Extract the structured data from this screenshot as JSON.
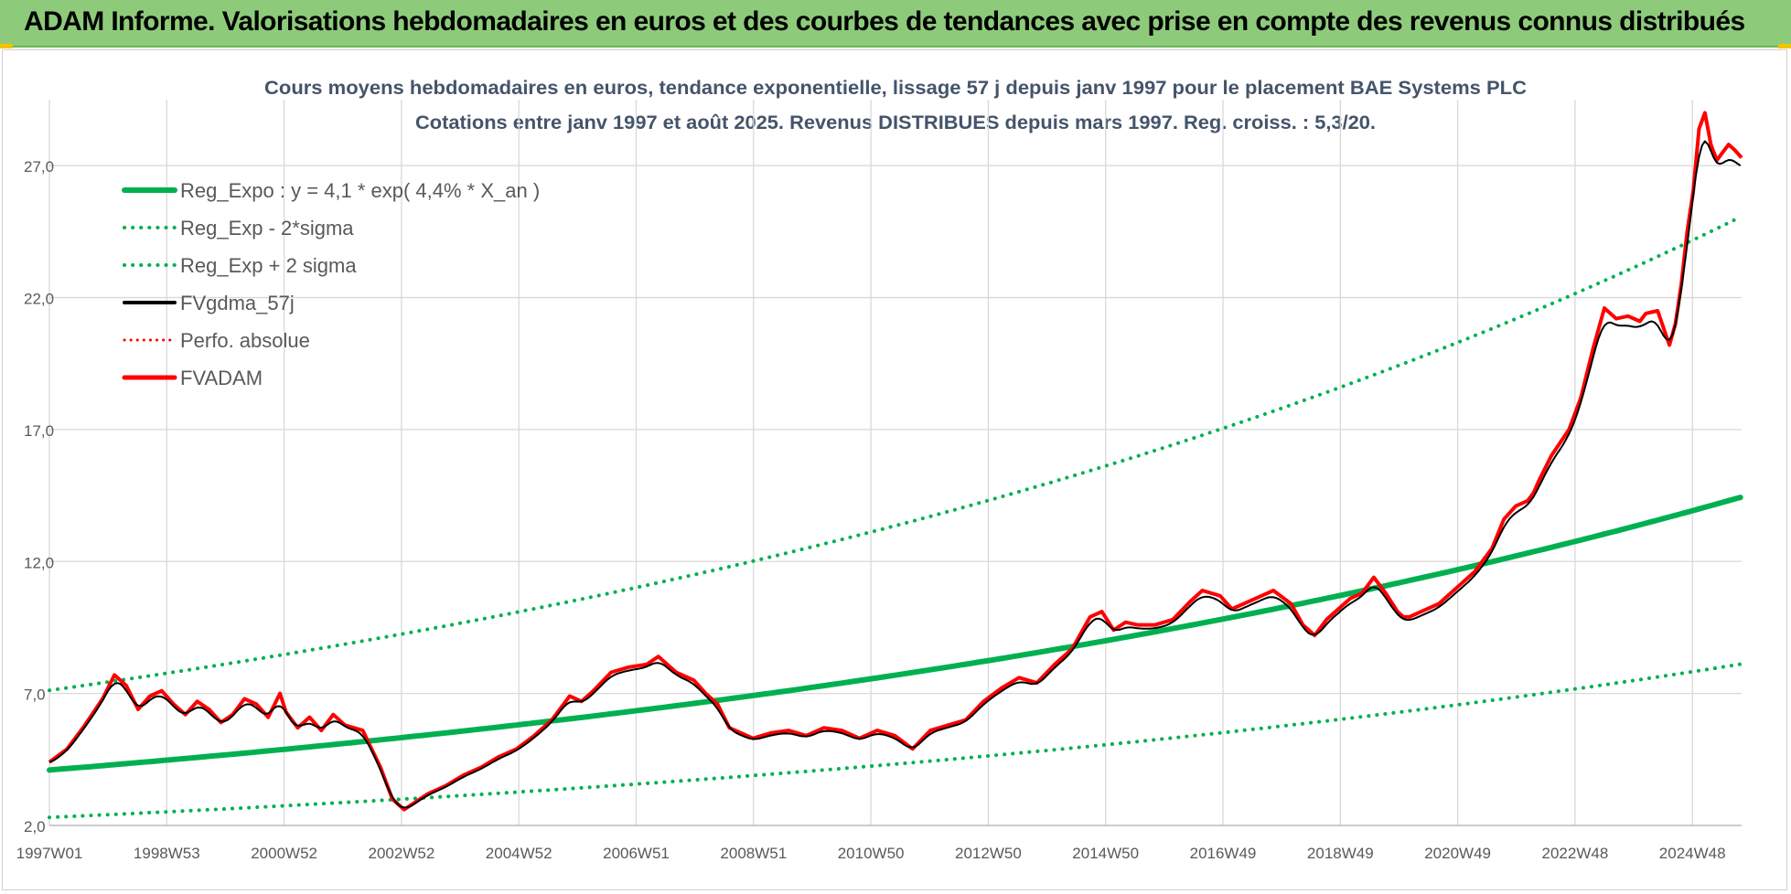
{
  "header": {
    "title": "ADAM Informe. Valorisations hebdomadaires en euros et des courbes de tendances avec prise en compte des revenus connus distribués"
  },
  "chart_data": {
    "type": "line",
    "title": "Cours moyens hebdomadaires en euros, tendance exponentielle, lissage 57 j depuis janv 1997 pour le placement BAE Systems PLC",
    "subtitle": "Cotations entre janv 1997 et août 2025.  Revenus DISTRIBUES depuis mars 1997. Reg. croiss. : 5,3/20.",
    "xlabel": "",
    "ylabel": "",
    "x_ticks": [
      "1997W01",
      "1998W53",
      "2000W52",
      "2002W52",
      "2004W52",
      "2006W51",
      "2008W51",
      "2010W50",
      "2012W50",
      "2014W50",
      "2016W49",
      "2018W49",
      "2020W49",
      "2022W48",
      "2024W48"
    ],
    "y_ticks": [
      "2,0",
      "7,0",
      "12,0",
      "17,0",
      "22,0",
      "27,0"
    ],
    "ylim": [
      2,
      29.5
    ],
    "xlim": [
      1997.0,
      2025.62
    ],
    "grid": true,
    "legend_position": "top-left",
    "colors": {
      "reg": "#00b050",
      "fvgdma": "#000000",
      "fvadam": "#ff0000",
      "perfo": "#ff0000"
    },
    "series": [
      {
        "name": "Reg_Expo : y = 4,1 * exp( 4,4% *  X_an )",
        "style": "solid-green",
        "model": "exp",
        "a": 4.1,
        "r": 0.044,
        "factor": 1.0
      },
      {
        "name": "Reg_Exp - 2*sigma",
        "style": "dotted-green",
        "model": "exp",
        "a": 4.1,
        "r": 0.044,
        "factor": 0.562
      },
      {
        "name": "Reg_Exp + 2 sigma",
        "style": "dotted-green",
        "model": "exp",
        "a": 4.1,
        "r": 0.044,
        "factor": 1.736
      },
      {
        "name": "FVgdma_57j",
        "style": "solid-black",
        "smoothed_of": "FVADAM",
        "lag_years": 0.08
      },
      {
        "name": "Perfo. absolue",
        "style": "dotted-red"
      },
      {
        "name": "FVADAM",
        "style": "solid-red",
        "x": [
          1997.0,
          1997.3,
          1997.6,
          1997.9,
          1998.1,
          1998.3,
          1998.5,
          1998.7,
          1998.9,
          1999.1,
          1999.3,
          1999.5,
          1999.7,
          1999.9,
          2000.1,
          2000.3,
          2000.5,
          2000.7,
          2000.9,
          2001.0,
          2001.2,
          2001.4,
          2001.6,
          2001.8,
          2002.0,
          2002.3,
          2002.6,
          2002.8,
          2003.0,
          2003.2,
          2003.4,
          2003.7,
          2004.0,
          2004.3,
          2004.6,
          2004.9,
          2005.2,
          2005.5,
          2005.8,
          2006.0,
          2006.2,
          2006.5,
          2006.8,
          2007.1,
          2007.3,
          2007.6,
          2007.9,
          2008.1,
          2008.3,
          2008.5,
          2008.7,
          2008.9,
          2009.2,
          2009.5,
          2009.8,
          2010.1,
          2010.4,
          2010.7,
          2011.0,
          2011.3,
          2011.6,
          2011.9,
          2012.2,
          2012.5,
          2012.8,
          2013.1,
          2013.4,
          2013.7,
          2014.0,
          2014.3,
          2014.6,
          2014.8,
          2015.0,
          2015.2,
          2015.4,
          2015.7,
          2016.0,
          2016.3,
          2016.5,
          2016.8,
          2017.0,
          2017.2,
          2017.4,
          2017.7,
          2018.0,
          2018.2,
          2018.4,
          2018.6,
          2018.8,
          2019.0,
          2019.2,
          2019.4,
          2019.6,
          2019.8,
          2019.9,
          2020.0,
          2020.1,
          2020.2,
          2020.5,
          2020.8,
          2021.1,
          2021.4,
          2021.6,
          2021.8,
          2022.0,
          2022.1,
          2022.2,
          2022.4,
          2022.7,
          2022.9,
          2023.1,
          2023.3,
          2023.5,
          2023.7,
          2023.9,
          2024.0,
          2024.2,
          2024.4,
          2024.5,
          2024.6,
          2024.7,
          2024.8,
          2024.9,
          2025.0,
          2025.1,
          2025.2,
          2025.3,
          2025.4,
          2025.5,
          2025.62
        ],
        "y": [
          4.4,
          4.9,
          5.8,
          6.8,
          7.7,
          7.3,
          6.4,
          6.9,
          7.1,
          6.6,
          6.2,
          6.7,
          6.4,
          5.9,
          6.2,
          6.8,
          6.6,
          6.1,
          7.0,
          6.3,
          5.7,
          6.1,
          5.6,
          6.2,
          5.8,
          5.6,
          4.2,
          3.0,
          2.6,
          2.9,
          3.2,
          3.5,
          3.9,
          4.2,
          4.6,
          4.9,
          5.4,
          6.0,
          6.9,
          6.7,
          7.1,
          7.8,
          8.0,
          8.1,
          8.4,
          7.8,
          7.5,
          7.0,
          6.6,
          5.7,
          5.5,
          5.3,
          5.5,
          5.6,
          5.4,
          5.7,
          5.6,
          5.3,
          5.6,
          5.4,
          4.9,
          5.6,
          5.8,
          6.0,
          6.7,
          7.2,
          7.6,
          7.4,
          8.1,
          8.7,
          9.9,
          10.1,
          9.4,
          9.7,
          9.6,
          9.6,
          9.8,
          10.5,
          10.9,
          10.7,
          10.2,
          10.4,
          10.6,
          10.9,
          10.4,
          9.6,
          9.2,
          9.8,
          10.2,
          10.6,
          10.8,
          11.4,
          10.8,
          10.1,
          9.9,
          9.9,
          10.0,
          10.1,
          10.4,
          11.0,
          11.6,
          12.5,
          13.6,
          14.1,
          14.3,
          14.6,
          15.1,
          16.0,
          17.0,
          18.2,
          20.0,
          21.6,
          21.2,
          21.3,
          21.1,
          21.4,
          21.5,
          20.2,
          21.0,
          22.5,
          24.5,
          26.0,
          28.4,
          29.0,
          27.8,
          27.2,
          27.5,
          27.8,
          27.6,
          27.3
        ]
      }
    ]
  }
}
